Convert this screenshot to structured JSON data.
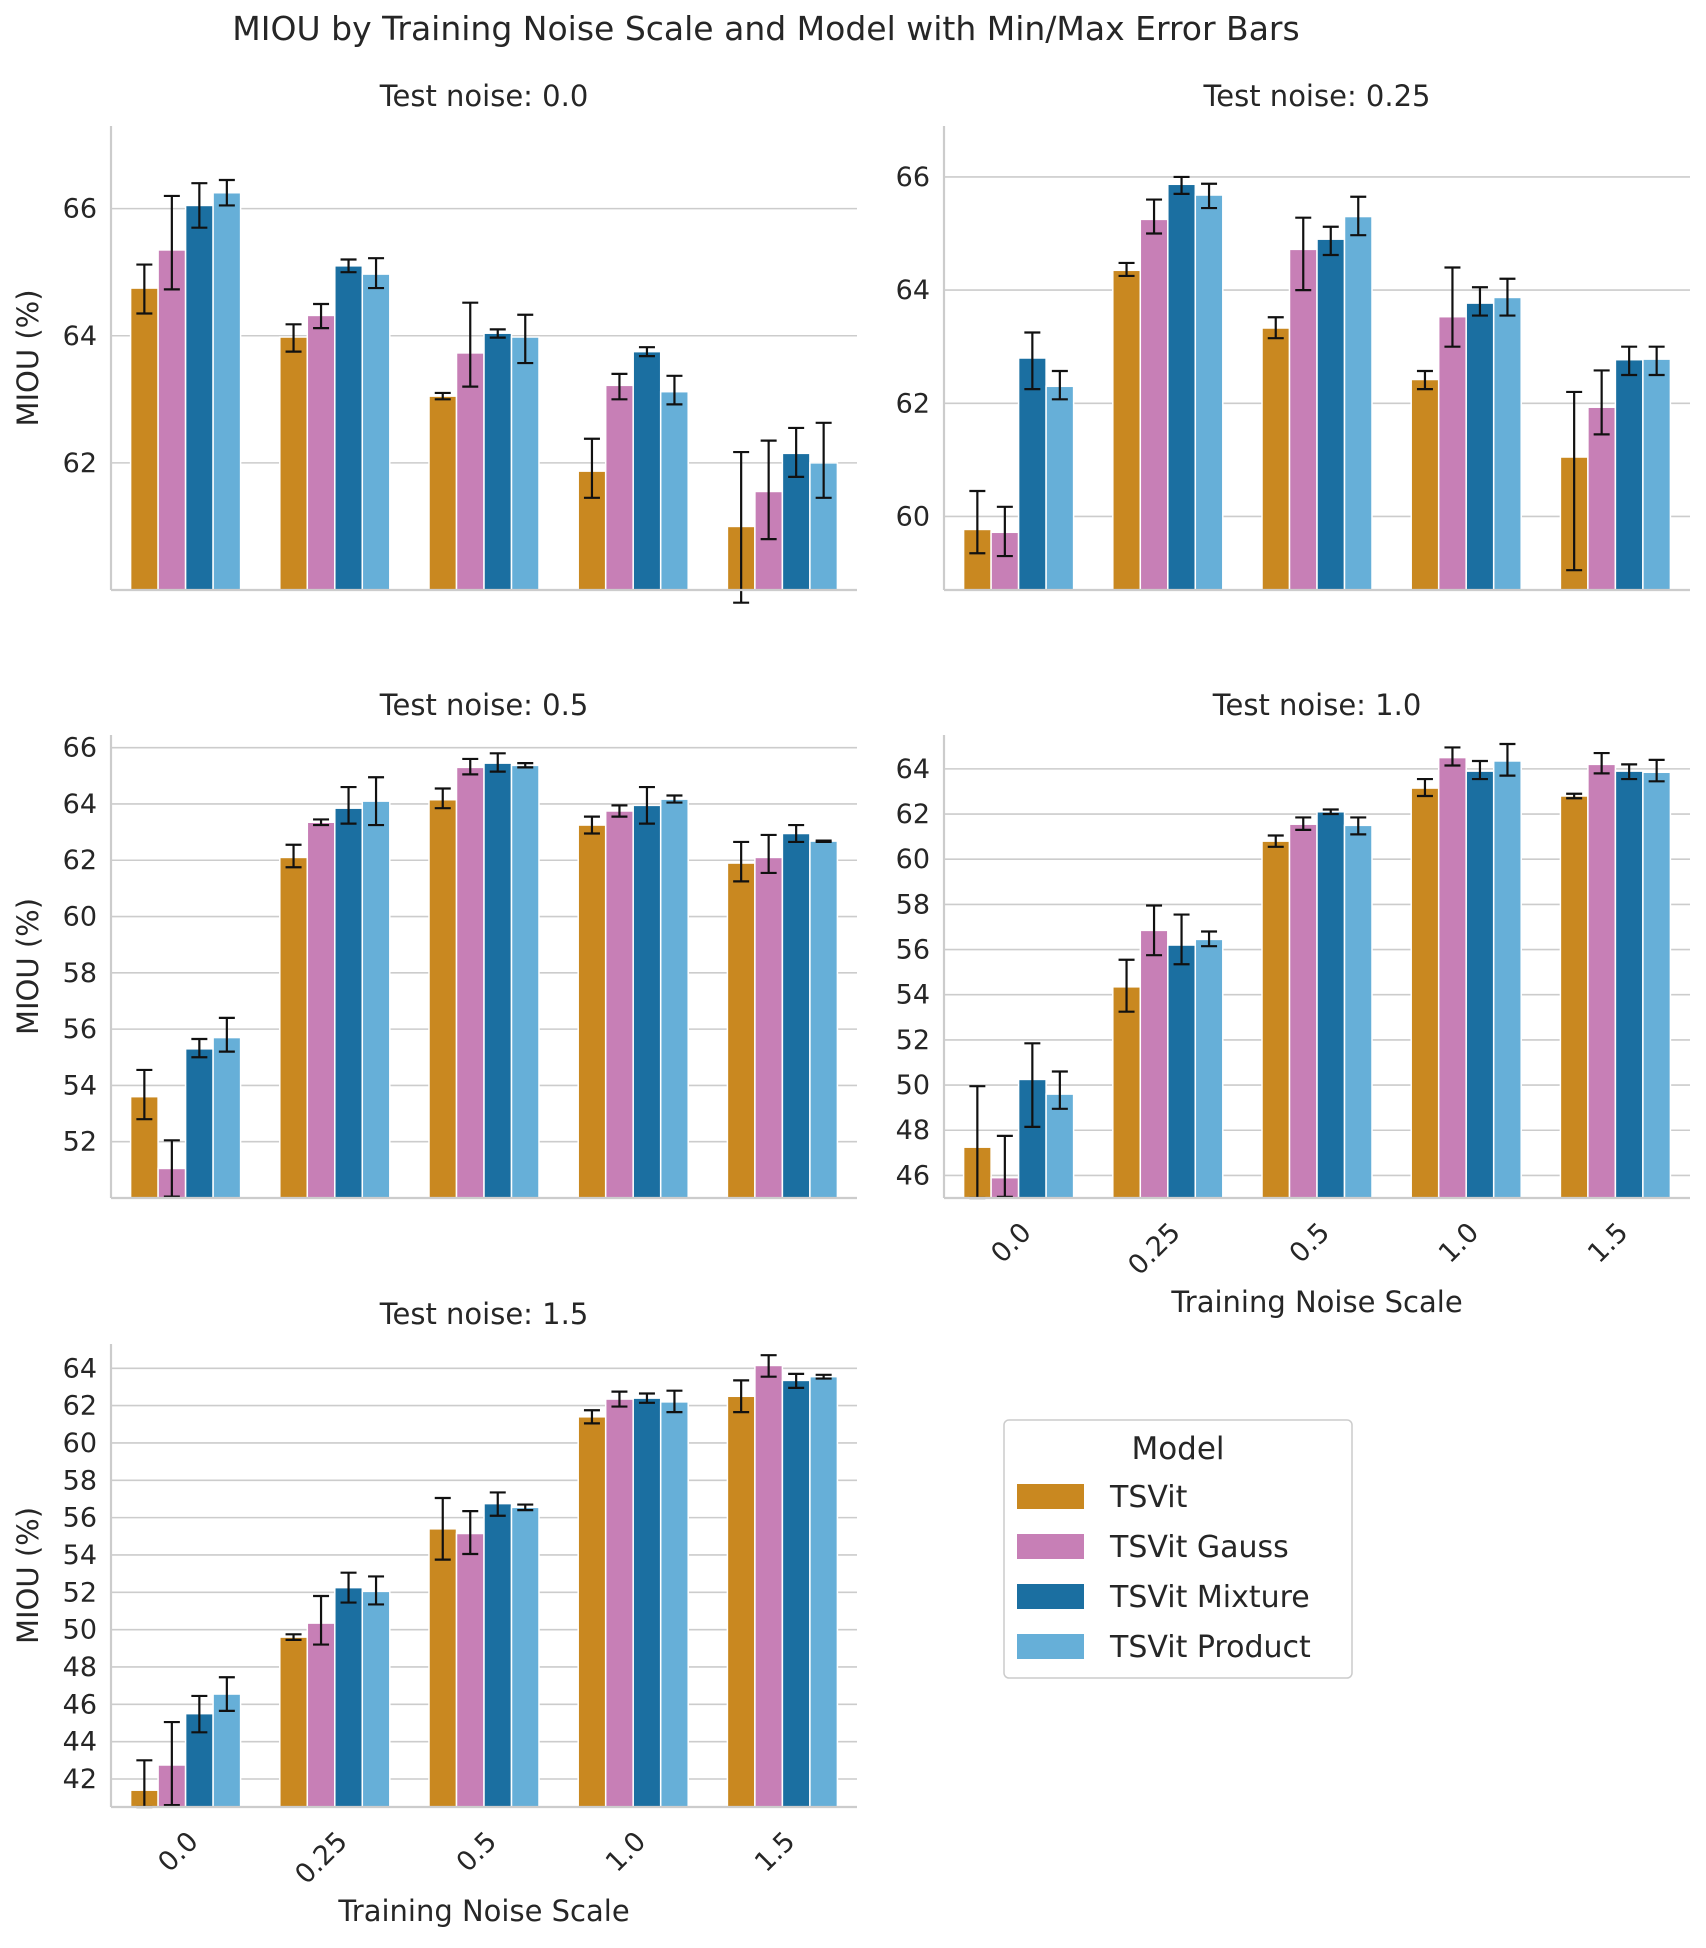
{
  "figure_title": "MIOU by Training Noise Scale and Model with Min/Max Error Bars",
  "legend": {
    "title": "Model",
    "items": [
      {
        "name": "TSVit",
        "color": "#c98820"
      },
      {
        "name": "TSVit Gauss",
        "color": "#c77fb6"
      },
      {
        "name": "TSVit Mixture",
        "color": "#1b6fa1"
      },
      {
        "name": "TSVit Product",
        "color": "#66afd8"
      }
    ]
  },
  "chart_data": [
    {
      "type": "bar",
      "title": "Test noise: 0.0",
      "xlabel": "",
      "ylabel": "MIOU (%)",
      "categories": [
        "0.0",
        "0.25",
        "0.5",
        "1.0",
        "1.5"
      ],
      "ylim": [
        60,
        67.3
      ],
      "yticks": [
        "62",
        "64",
        "66"
      ],
      "show_xticks": false,
      "series": [
        {
          "name": "TSVit",
          "values": [
            64.75,
            63.98,
            63.05,
            61.87,
            61.0
          ],
          "err_min": [
            64.35,
            63.75,
            63.0,
            61.45,
            59.8
          ],
          "err_max": [
            65.12,
            64.18,
            63.1,
            62.38,
            62.17
          ]
        },
        {
          "name": "TSVit Gauss",
          "values": [
            65.35,
            64.32,
            63.73,
            63.22,
            61.55
          ],
          "err_min": [
            64.73,
            64.12,
            63.2,
            63.0,
            60.8
          ],
          "err_max": [
            66.2,
            64.5,
            64.52,
            63.4,
            62.35
          ]
        },
        {
          "name": "TSVit Mixture",
          "values": [
            66.05,
            65.1,
            64.04,
            63.75,
            62.15
          ],
          "err_min": [
            65.7,
            65.0,
            63.97,
            63.68,
            61.78
          ],
          "err_max": [
            66.4,
            65.2,
            64.1,
            63.82,
            62.55
          ]
        },
        {
          "name": "TSVit Product",
          "values": [
            66.25,
            64.97,
            63.98,
            63.12,
            62.0
          ],
          "err_min": [
            66.05,
            64.75,
            63.57,
            62.92,
            61.45
          ],
          "err_max": [
            66.45,
            65.22,
            64.33,
            63.37,
            62.63
          ]
        }
      ]
    },
    {
      "type": "bar",
      "title": "Test noise: 0.25",
      "xlabel": "",
      "ylabel": "",
      "categories": [
        "0.0",
        "0.25",
        "0.5",
        "1.0",
        "1.5"
      ],
      "ylim": [
        58.7,
        66.9
      ],
      "yticks": [
        "60",
        "62",
        "64",
        "66"
      ],
      "show_xticks": false,
      "series": [
        {
          "name": "TSVit",
          "values": [
            59.77,
            64.35,
            63.33,
            62.42,
            61.05
          ],
          "err_min": [
            59.35,
            64.25,
            63.15,
            62.25,
            59.05
          ],
          "err_max": [
            60.45,
            64.48,
            63.52,
            62.57,
            62.2
          ]
        },
        {
          "name": "TSVit Gauss",
          "values": [
            59.72,
            65.25,
            64.72,
            63.53,
            61.93
          ],
          "err_min": [
            59.3,
            65.0,
            64.0,
            63.0,
            61.45
          ],
          "err_max": [
            60.17,
            65.6,
            65.28,
            64.4,
            62.58
          ]
        },
        {
          "name": "TSVit Mixture",
          "values": [
            62.8,
            65.87,
            64.9,
            63.77,
            62.77
          ],
          "err_min": [
            62.25,
            65.7,
            64.62,
            63.55,
            62.5
          ],
          "err_max": [
            63.25,
            66.0,
            65.12,
            64.05,
            63.0
          ]
        },
        {
          "name": "TSVit Product",
          "values": [
            62.3,
            65.68,
            65.3,
            63.87,
            62.78
          ],
          "err_min": [
            62.07,
            65.45,
            64.97,
            63.55,
            62.5
          ],
          "err_max": [
            62.57,
            65.88,
            65.65,
            64.2,
            63.0
          ]
        }
      ]
    },
    {
      "type": "bar",
      "title": "Test noise: 0.5",
      "xlabel": "",
      "ylabel": "MIOU (%)",
      "categories": [
        "0.0",
        "0.25",
        "0.5",
        "1.0",
        "1.5"
      ],
      "ylim": [
        50.0,
        66.45
      ],
      "yticks": [
        "52",
        "54",
        "56",
        "58",
        "60",
        "62",
        "64",
        "66"
      ],
      "show_xticks": false,
      "series": [
        {
          "name": "TSVit",
          "values": [
            53.6,
            62.1,
            64.15,
            63.25,
            61.9
          ],
          "err_min": [
            52.8,
            61.75,
            63.85,
            62.95,
            61.25
          ],
          "err_max": [
            54.55,
            62.55,
            64.55,
            63.55,
            62.65
          ]
        },
        {
          "name": "TSVit Gauss",
          "values": [
            51.05,
            63.35,
            65.3,
            63.75,
            62.1
          ],
          "err_min": [
            50.05,
            63.25,
            65.05,
            63.55,
            61.55
          ],
          "err_max": [
            52.05,
            63.45,
            65.6,
            63.95,
            62.9
          ]
        },
        {
          "name": "TSVit Mixture",
          "values": [
            55.3,
            63.85,
            65.45,
            63.95,
            62.95
          ],
          "err_min": [
            55.0,
            63.3,
            65.15,
            63.3,
            62.65
          ],
          "err_max": [
            55.65,
            64.6,
            65.8,
            64.6,
            63.25
          ]
        },
        {
          "name": "TSVit Product",
          "values": [
            55.7,
            64.1,
            65.37,
            64.17,
            62.68
          ],
          "err_min": [
            55.2,
            63.25,
            65.3,
            64.05,
            62.65
          ],
          "err_max": [
            56.4,
            64.95,
            65.45,
            64.3,
            62.7
          ]
        }
      ]
    },
    {
      "type": "bar",
      "title": "Test noise: 1.0",
      "xlabel": "Training Noise Scale",
      "ylabel": "",
      "categories": [
        "0.0",
        "0.25",
        "0.5",
        "1.0",
        "1.5"
      ],
      "ylim": [
        45.0,
        65.5
      ],
      "yticks": [
        "46",
        "48",
        "50",
        "52",
        "54",
        "56",
        "58",
        "60",
        "62",
        "64"
      ],
      "show_xticks": true,
      "series": [
        {
          "name": "TSVit",
          "values": [
            47.25,
            54.35,
            60.8,
            63.15,
            62.8
          ],
          "err_min": [
            45.0,
            53.25,
            60.55,
            62.8,
            62.7
          ],
          "err_max": [
            49.95,
            55.55,
            61.05,
            63.55,
            62.9
          ]
        },
        {
          "name": "TSVit Gauss",
          "values": [
            45.9,
            56.85,
            61.55,
            64.5,
            64.2
          ],
          "err_min": [
            45.05,
            55.75,
            61.3,
            64.15,
            63.8
          ],
          "err_max": [
            47.75,
            57.95,
            61.85,
            64.95,
            64.7
          ]
        },
        {
          "name": "TSVit Mixture",
          "values": [
            50.25,
            56.2,
            62.1,
            63.9,
            63.9
          ],
          "err_min": [
            48.15,
            55.35,
            62.0,
            63.55,
            63.55
          ],
          "err_max": [
            51.85,
            57.55,
            62.2,
            64.35,
            64.2
          ]
        },
        {
          "name": "TSVit Product",
          "values": [
            49.6,
            56.45,
            61.5,
            64.35,
            63.85
          ],
          "err_min": [
            48.95,
            56.15,
            61.1,
            63.7,
            63.45
          ],
          "err_max": [
            50.6,
            56.8,
            61.85,
            65.1,
            64.4
          ]
        }
      ]
    },
    {
      "type": "bar",
      "title": "Test noise: 1.5",
      "xlabel": "Training Noise Scale",
      "ylabel": "MIOU (%)",
      "categories": [
        "0.0",
        "0.25",
        "0.5",
        "1.0",
        "1.5"
      ],
      "ylim": [
        40.5,
        65.3
      ],
      "yticks": [
        "42",
        "44",
        "46",
        "48",
        "50",
        "52",
        "54",
        "56",
        "58",
        "60",
        "62",
        "64"
      ],
      "show_xticks": true,
      "series": [
        {
          "name": "TSVit",
          "values": [
            41.4,
            49.6,
            55.4,
            61.4,
            62.5
          ],
          "err_min": [
            40.5,
            49.45,
            53.75,
            61.05,
            61.65
          ],
          "err_max": [
            43.0,
            49.75,
            57.05,
            61.75,
            63.35
          ]
        },
        {
          "name": "TSVit Gauss",
          "values": [
            42.75,
            50.35,
            55.15,
            62.35,
            64.15
          ],
          "err_min": [
            40.6,
            49.2,
            54.05,
            61.95,
            63.55
          ],
          "err_max": [
            45.05,
            51.8,
            56.35,
            62.75,
            64.7
          ]
        },
        {
          "name": "TSVit Mixture",
          "values": [
            45.5,
            52.25,
            56.75,
            62.4,
            63.35
          ],
          "err_min": [
            44.5,
            51.45,
            56.1,
            62.15,
            62.95
          ],
          "err_max": [
            46.45,
            53.05,
            57.35,
            62.65,
            63.7
          ]
        },
        {
          "name": "TSVit Product",
          "values": [
            46.55,
            52.05,
            56.55,
            62.2,
            63.55
          ],
          "err_min": [
            45.65,
            51.35,
            56.4,
            61.65,
            63.45
          ],
          "err_max": [
            47.45,
            52.85,
            56.7,
            62.8,
            63.65
          ]
        }
      ]
    }
  ]
}
